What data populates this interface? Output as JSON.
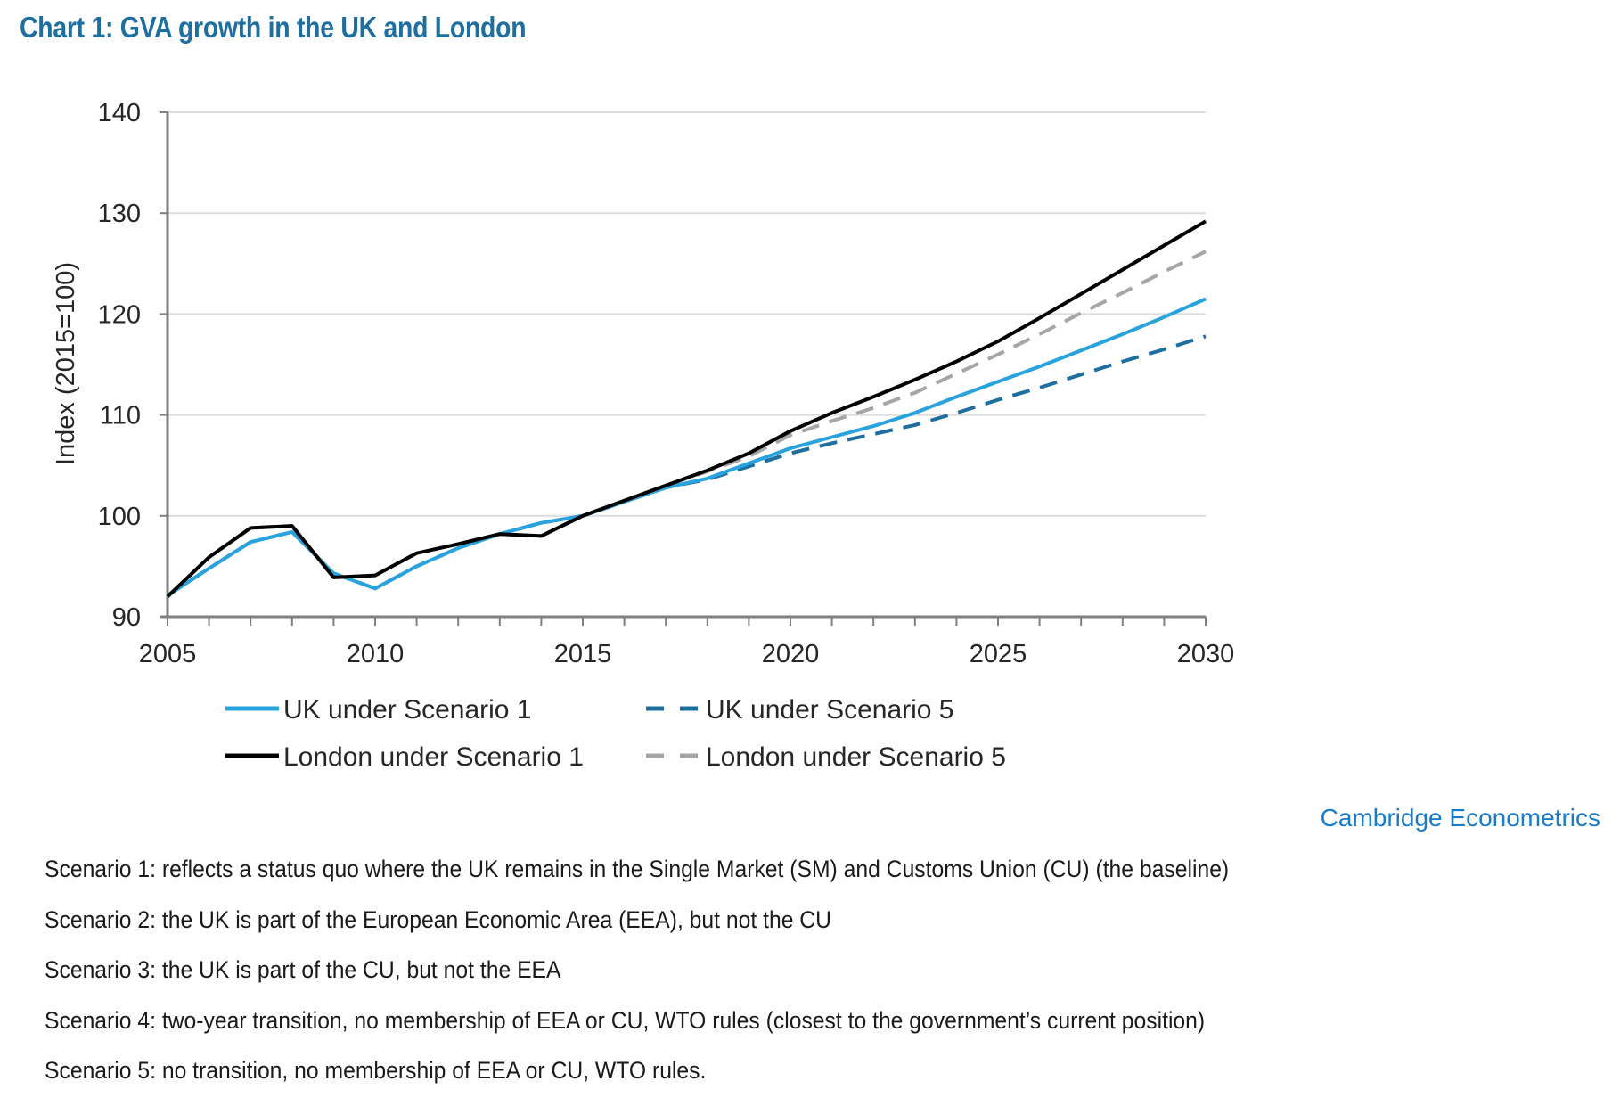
{
  "title": "Chart 1: GVA growth in the UK and London",
  "source": "Cambridge Econometrics",
  "notes": [
    "Scenario 1: reflects a status quo where the UK remains in the Single Market (SM) and Customs Union (CU) (the baseline)",
    "Scenario 2: the UK is part of the European Economic Area (EEA), but not the CU",
    "Scenario 3: the UK is part of the CU, but not the EEA",
    "Scenario 4: two-year transition, no membership of EEA or CU, WTO rules (closest to the government’s current position)",
    "Scenario 5: no transition, no membership of EEA or CU, WTO rules."
  ],
  "chart_data": {
    "type": "line",
    "title": "Chart 1: GVA growth in the UK and London",
    "xlabel": "",
    "ylabel": "Index (2015=100)",
    "xlim": [
      2005,
      2030
    ],
    "ylim": [
      90,
      140
    ],
    "grid": true,
    "legend_position": "bottom",
    "xticks": [
      "2005",
      "2010",
      "2015",
      "2020",
      "2025",
      "2030"
    ],
    "yticks": [
      "90",
      "100",
      "110",
      "120",
      "130",
      "140"
    ],
    "x": [
      2005,
      2006,
      2007,
      2008,
      2009,
      2010,
      2011,
      2012,
      2013,
      2014,
      2015,
      2016,
      2017,
      2018,
      2019,
      2020,
      2021,
      2022,
      2023,
      2024,
      2025,
      2026,
      2027,
      2028,
      2029,
      2030
    ],
    "series": [
      {
        "name": "UK under Scenario 1",
        "color": "#29a3dd",
        "dash": "solid",
        "values": [
          92.1,
          94.8,
          97.4,
          98.4,
          94.3,
          92.8,
          95.0,
          96.8,
          98.2,
          99.3,
          100.0,
          101.4,
          102.8,
          103.7,
          105.2,
          106.7,
          107.8,
          108.9,
          110.2,
          111.8,
          113.3,
          114.8,
          116.4,
          118.0,
          119.7,
          121.5
        ]
      },
      {
        "name": "UK under Scenario 5",
        "color": "#1f6ea0",
        "dash": "dashed",
        "values": [
          92.1,
          94.8,
          97.4,
          98.4,
          94.3,
          92.8,
          95.0,
          96.8,
          98.2,
          99.3,
          100.0,
          101.4,
          102.8,
          103.6,
          104.9,
          106.2,
          107.2,
          108.1,
          109.0,
          110.2,
          111.5,
          112.7,
          114.0,
          115.3,
          116.5,
          117.8
        ]
      },
      {
        "name": "London under Scenario 1",
        "color": "#000000",
        "dash": "solid",
        "values": [
          92.0,
          95.9,
          98.8,
          99.0,
          93.9,
          94.1,
          96.3,
          97.2,
          98.2,
          98.0,
          100.0,
          101.5,
          103.0,
          104.5,
          106.2,
          108.4,
          110.2,
          111.8,
          113.5,
          115.3,
          117.3,
          119.6,
          122.0,
          124.4,
          126.8,
          129.2
        ]
      },
      {
        "name": "London under Scenario 5",
        "color": "#a6a6a6",
        "dash": "dashed",
        "values": [
          92.0,
          95.9,
          98.8,
          99.0,
          93.9,
          94.1,
          96.3,
          97.2,
          98.2,
          98.0,
          100.0,
          101.5,
          103.0,
          104.4,
          105.9,
          108.0,
          109.4,
          110.7,
          112.2,
          114.1,
          116.0,
          118.0,
          120.1,
          122.1,
          124.2,
          126.2
        ]
      }
    ]
  }
}
